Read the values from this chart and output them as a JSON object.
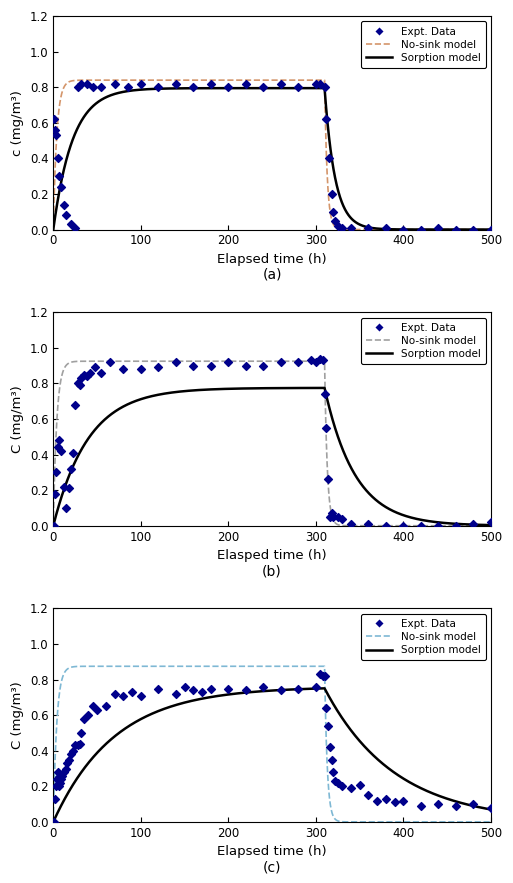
{
  "panels": [
    {
      "label": "(a)",
      "xlabel": "Elapsed time (h)",
      "ylabel": "c (mg/m³)",
      "nosink_color": "#D4956A",
      "nosink_style": "--",
      "sorption_color": "#000000",
      "expt_color": "#00008B",
      "ylim": [
        0,
        1.2
      ],
      "xlim": [
        0,
        500
      ],
      "yticks": [
        0,
        0.2,
        0.4,
        0.6,
        0.8,
        1.0,
        1.2
      ],
      "xticks": [
        0,
        100,
        200,
        300,
        400,
        500
      ],
      "nosink_plateau": 0.84,
      "nosink_switch": 310,
      "sorption_plateau": 0.795,
      "sorption_switch": 310,
      "sorption_rise_tau": 22,
      "sorption_decay_tau": 12,
      "nosink_rise_tau": 4,
      "nosink_decay_tau": 3,
      "expt_data_loading": [
        [
          1,
          0.62
        ],
        [
          2,
          0.56
        ],
        [
          3,
          0.53
        ],
        [
          5,
          0.4
        ],
        [
          7,
          0.3
        ],
        [
          9,
          0.24
        ],
        [
          12,
          0.14
        ],
        [
          15,
          0.08
        ],
        [
          20,
          0.03
        ],
        [
          25,
          0.01
        ],
        [
          28,
          0.8
        ],
        [
          32,
          0.82
        ],
        [
          38,
          0.82
        ],
        [
          45,
          0.8
        ],
        [
          55,
          0.8
        ],
        [
          70,
          0.82
        ],
        [
          85,
          0.8
        ],
        [
          100,
          0.82
        ],
        [
          120,
          0.8
        ],
        [
          140,
          0.82
        ],
        [
          160,
          0.8
        ],
        [
          180,
          0.82
        ],
        [
          200,
          0.8
        ],
        [
          220,
          0.82
        ],
        [
          240,
          0.8
        ],
        [
          260,
          0.82
        ],
        [
          280,
          0.8
        ],
        [
          300,
          0.82
        ],
        [
          305,
          0.82
        ],
        [
          310,
          0.8
        ],
        [
          312,
          0.62
        ],
        [
          315,
          0.4
        ],
        [
          318,
          0.2
        ],
        [
          320,
          0.1
        ],
        [
          322,
          0.05
        ],
        [
          325,
          0.02
        ],
        [
          330,
          0.01
        ],
        [
          340,
          0.01
        ],
        [
          360,
          0.01
        ],
        [
          380,
          0.01
        ],
        [
          400,
          0.0
        ],
        [
          420,
          0.0
        ],
        [
          440,
          0.01
        ],
        [
          460,
          0.0
        ],
        [
          480,
          0.0
        ],
        [
          500,
          0.0
        ]
      ]
    },
    {
      "label": "(b)",
      "xlabel": "Elasped time (h)",
      "ylabel": "C (mg/m³)",
      "nosink_color": "#A0A0A0",
      "nosink_style": "--",
      "sorption_color": "#000000",
      "expt_color": "#00008B",
      "ylim": [
        0,
        1.2
      ],
      "xlim": [
        0,
        500
      ],
      "yticks": [
        0,
        0.2,
        0.4,
        0.6,
        0.8,
        1.0,
        1.2
      ],
      "xticks": [
        0,
        100,
        200,
        300,
        400,
        500
      ],
      "nosink_plateau": 0.925,
      "nosink_switch": 310,
      "sorption_plateau": 0.775,
      "sorption_switch": 310,
      "sorption_rise_tau": 40,
      "sorption_decay_tau": 35,
      "nosink_rise_tau": 4,
      "nosink_decay_tau": 3,
      "expt_data_loading": [
        [
          1,
          0.0
        ],
        [
          2,
          0.18
        ],
        [
          3,
          0.3
        ],
        [
          5,
          0.44
        ],
        [
          7,
          0.48
        ],
        [
          9,
          0.42
        ],
        [
          12,
          0.22
        ],
        [
          15,
          0.1
        ],
        [
          18,
          0.21
        ],
        [
          20,
          0.32
        ],
        [
          22,
          0.41
        ],
        [
          25,
          0.68
        ],
        [
          28,
          0.8
        ],
        [
          30,
          0.79
        ],
        [
          32,
          0.83
        ],
        [
          35,
          0.85
        ],
        [
          38,
          0.84
        ],
        [
          42,
          0.86
        ],
        [
          48,
          0.89
        ],
        [
          55,
          0.86
        ],
        [
          65,
          0.92
        ],
        [
          80,
          0.88
        ],
        [
          100,
          0.88
        ],
        [
          120,
          0.89
        ],
        [
          140,
          0.92
        ],
        [
          160,
          0.9
        ],
        [
          180,
          0.9
        ],
        [
          200,
          0.92
        ],
        [
          220,
          0.9
        ],
        [
          240,
          0.9
        ],
        [
          260,
          0.92
        ],
        [
          280,
          0.92
        ],
        [
          295,
          0.93
        ],
        [
          300,
          0.92
        ],
        [
          305,
          0.94
        ],
        [
          308,
          0.93
        ],
        [
          310,
          0.74
        ],
        [
          312,
          0.55
        ],
        [
          314,
          0.26
        ],
        [
          316,
          0.05
        ],
        [
          318,
          0.07
        ],
        [
          320,
          0.05
        ],
        [
          325,
          0.05
        ],
        [
          330,
          0.04
        ],
        [
          340,
          0.01
        ],
        [
          360,
          0.01
        ],
        [
          380,
          0.0
        ],
        [
          400,
          0.0
        ],
        [
          420,
          0.0
        ],
        [
          440,
          0.0
        ],
        [
          460,
          0.0
        ],
        [
          480,
          0.01
        ],
        [
          500,
          0.02
        ]
      ]
    },
    {
      "label": "(c)",
      "xlabel": "Elapsed time (h)",
      "ylabel": "C (mg/m³)",
      "nosink_color": "#7EB8D4",
      "nosink_style": "--",
      "sorption_color": "#000000",
      "expt_color": "#00008B",
      "ylim": [
        0,
        1.2
      ],
      "xlim": [
        0,
        500
      ],
      "yticks": [
        0,
        0.2,
        0.4,
        0.6,
        0.8,
        1.0,
        1.2
      ],
      "xticks": [
        0,
        100,
        200,
        300,
        400,
        500
      ],
      "nosink_plateau": 0.875,
      "nosink_switch": 310,
      "sorption_plateau": 0.76,
      "sorption_switch": 310,
      "sorption_rise_tau": 70,
      "sorption_decay_tau": 80,
      "nosink_rise_tau": 4,
      "nosink_decay_tau": 3,
      "expt_data_loading": [
        [
          1,
          0.0
        ],
        [
          2,
          0.13
        ],
        [
          3,
          0.2
        ],
        [
          4,
          0.24
        ],
        [
          5,
          0.28
        ],
        [
          6,
          0.25
        ],
        [
          7,
          0.2
        ],
        [
          8,
          0.22
        ],
        [
          9,
          0.24
        ],
        [
          10,
          0.26
        ],
        [
          12,
          0.28
        ],
        [
          14,
          0.3
        ],
        [
          16,
          0.33
        ],
        [
          18,
          0.35
        ],
        [
          20,
          0.38
        ],
        [
          22,
          0.4
        ],
        [
          25,
          0.43
        ],
        [
          28,
          0.43
        ],
        [
          30,
          0.44
        ],
        [
          32,
          0.5
        ],
        [
          35,
          0.58
        ],
        [
          40,
          0.6
        ],
        [
          45,
          0.65
        ],
        [
          50,
          0.63
        ],
        [
          60,
          0.65
        ],
        [
          70,
          0.72
        ],
        [
          80,
          0.71
        ],
        [
          90,
          0.73
        ],
        [
          100,
          0.71
        ],
        [
          120,
          0.75
        ],
        [
          140,
          0.72
        ],
        [
          150,
          0.76
        ],
        [
          160,
          0.74
        ],
        [
          170,
          0.73
        ],
        [
          180,
          0.75
        ],
        [
          200,
          0.75
        ],
        [
          220,
          0.74
        ],
        [
          240,
          0.76
        ],
        [
          260,
          0.74
        ],
        [
          280,
          0.75
        ],
        [
          300,
          0.76
        ],
        [
          305,
          0.83
        ],
        [
          308,
          0.82
        ],
        [
          310,
          0.82
        ],
        [
          312,
          0.64
        ],
        [
          314,
          0.54
        ],
        [
          316,
          0.42
        ],
        [
          318,
          0.35
        ],
        [
          320,
          0.28
        ],
        [
          322,
          0.23
        ],
        [
          325,
          0.22
        ],
        [
          330,
          0.2
        ],
        [
          340,
          0.19
        ],
        [
          350,
          0.21
        ],
        [
          360,
          0.15
        ],
        [
          370,
          0.12
        ],
        [
          380,
          0.13
        ],
        [
          390,
          0.11
        ],
        [
          400,
          0.12
        ],
        [
          420,
          0.09
        ],
        [
          440,
          0.1
        ],
        [
          460,
          0.09
        ],
        [
          480,
          0.1
        ],
        [
          500,
          0.08
        ]
      ]
    }
  ],
  "legend_labels": [
    "Expt. Data",
    "No-sink model",
    "Sorption model"
  ],
  "figure_bg": "#ffffff"
}
